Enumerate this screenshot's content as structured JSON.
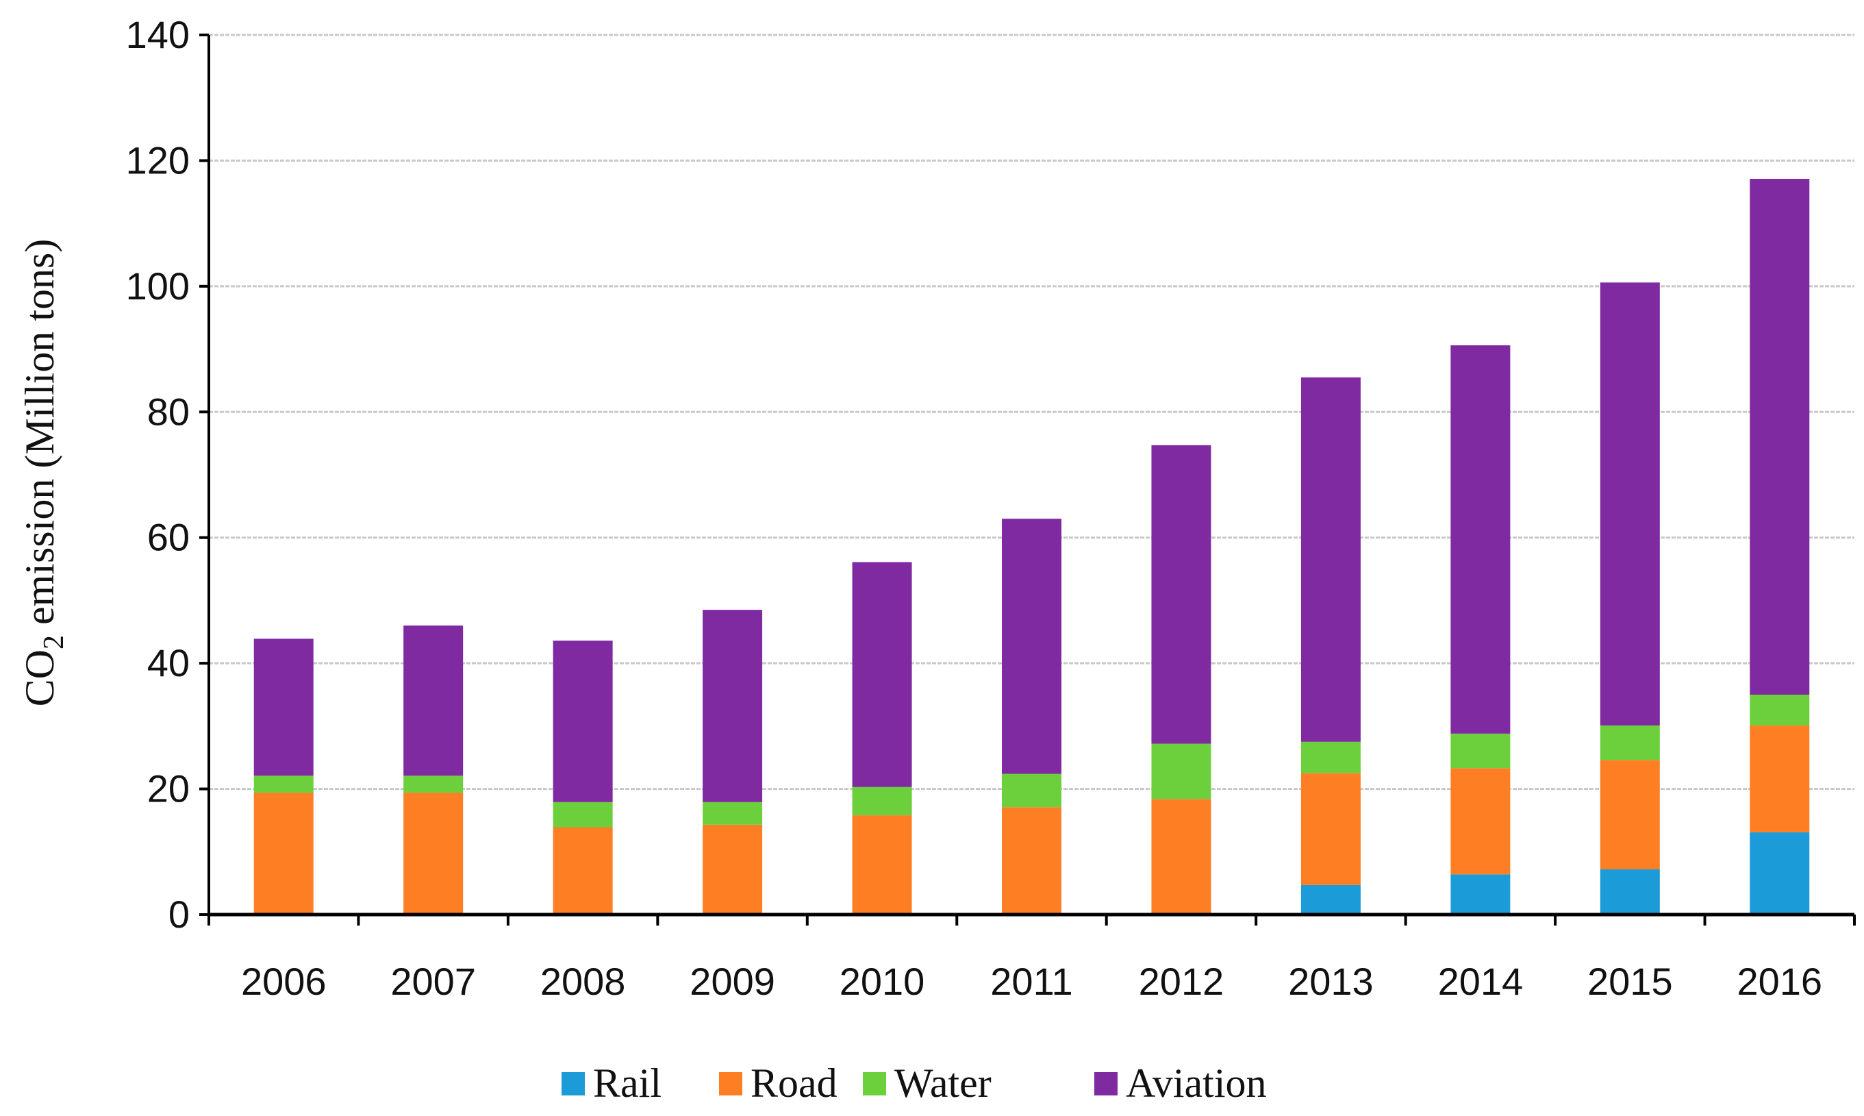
{
  "chart_data": {
    "type": "bar",
    "stacked": true,
    "title": "",
    "xlabel": "",
    "ylabel": "CO2 emission (Million tons)",
    "ylabel_parts": {
      "main": "CO",
      "sub": "2",
      "rest": " emission (Million tons)"
    },
    "ylim": [
      0,
      140
    ],
    "yticks": [
      0,
      20,
      40,
      60,
      80,
      100,
      120,
      140
    ],
    "grid": true,
    "legend_position": "bottom",
    "categories": [
      "2006",
      "2007",
      "2008",
      "2009",
      "2010",
      "2011",
      "2012",
      "2013",
      "2014",
      "2015",
      "2016"
    ],
    "series": [
      {
        "name": "Rail",
        "color": "#1b9bd7",
        "values": [
          0,
          0,
          0,
          0,
          0,
          0,
          0,
          4.7,
          6.4,
          7.2,
          13.1
        ]
      },
      {
        "name": "Road",
        "color": "#fd7e23",
        "values": [
          19.4,
          19.4,
          13.9,
          14.3,
          15.8,
          17.1,
          18.4,
          17.8,
          16.9,
          17.4,
          17.0
        ]
      },
      {
        "name": "Water",
        "color": "#6cd03c",
        "values": [
          2.7,
          2.7,
          4.0,
          3.6,
          4.5,
          5.3,
          8.8,
          5.0,
          5.5,
          5.5,
          4.9
        ]
      },
      {
        "name": "Aviation",
        "color": "#7f2aa0",
        "values": [
          21.8,
          23.9,
          25.7,
          30.6,
          35.8,
          40.6,
          47.5,
          58.0,
          61.8,
          70.5,
          82.1
        ]
      }
    ]
  }
}
